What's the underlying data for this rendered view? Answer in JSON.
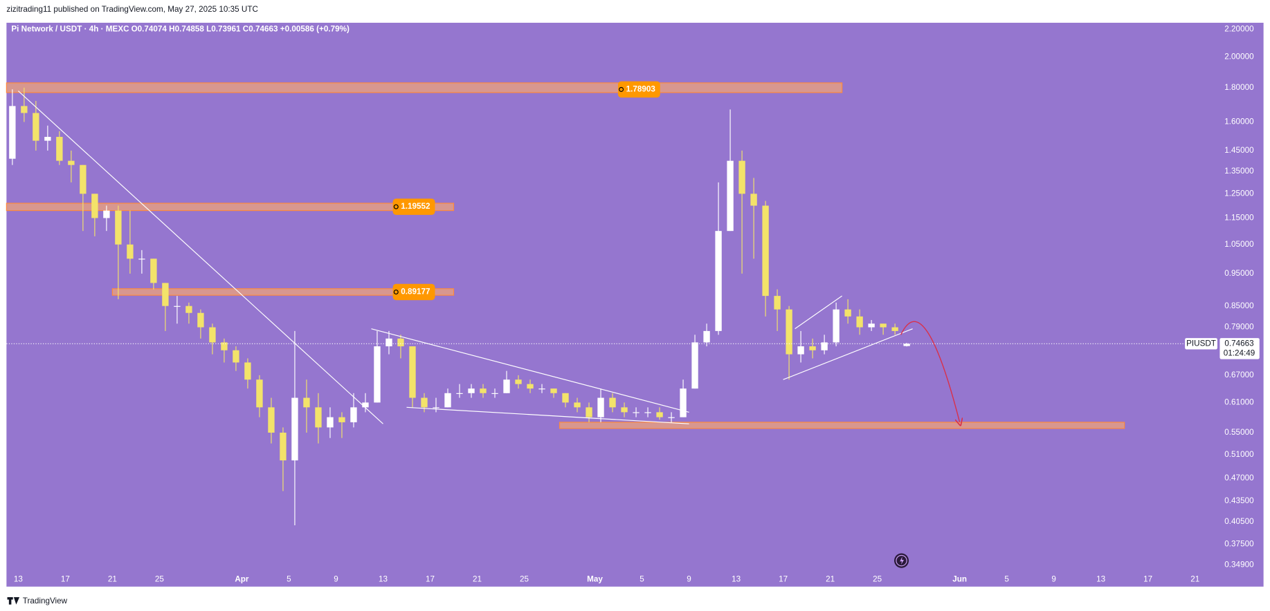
{
  "header": {
    "publisher": "zizitrading11 published on TradingView.com, May 27, 2025 10:35 UTC"
  },
  "chart_data": {
    "type": "candlestick",
    "symbol": "Pi Network / USDT · 4h · MEXC",
    "ohlc_text": "O0.74074 H0.74858 L0.73961 C0.74663 +0.00586 (+0.79%)",
    "ticker": "PIUSDT",
    "countdown": "01:24:49",
    "x": [
      "2025-03-12",
      "2025-03-13",
      "2025-03-14",
      "2025-03-15",
      "2025-03-16",
      "2025-03-17",
      "2025-03-18",
      "2025-03-19",
      "2025-03-20",
      "2025-03-21",
      "2025-03-22",
      "2025-03-23",
      "2025-03-24",
      "2025-03-25",
      "2025-03-26",
      "2025-03-27",
      "2025-03-28",
      "2025-03-29",
      "2025-03-30",
      "2025-03-31",
      "2025-04-01",
      "2025-04-02",
      "2025-04-03",
      "2025-04-04",
      "2025-04-05",
      "2025-04-06",
      "2025-04-07",
      "2025-04-08",
      "2025-04-09",
      "2025-04-10",
      "2025-04-11",
      "2025-04-12",
      "2025-04-13",
      "2025-04-14",
      "2025-04-15",
      "2025-04-16",
      "2025-04-17",
      "2025-04-18",
      "2025-04-19",
      "2025-04-20",
      "2025-04-21",
      "2025-04-22",
      "2025-04-23",
      "2025-04-24",
      "2025-04-25",
      "2025-04-26",
      "2025-04-27",
      "2025-04-28",
      "2025-04-29",
      "2025-04-30",
      "2025-05-01",
      "2025-05-02",
      "2025-05-03",
      "2025-05-04",
      "2025-05-05",
      "2025-05-06",
      "2025-05-07",
      "2025-05-08",
      "2025-05-09",
      "2025-05-10",
      "2025-05-11",
      "2025-05-12",
      "2025-05-13",
      "2025-05-14",
      "2025-05-15",
      "2025-05-16",
      "2025-05-17",
      "2025-05-18",
      "2025-05-19",
      "2025-05-20",
      "2025-05-21",
      "2025-05-22",
      "2025-05-23",
      "2025-05-24",
      "2025-05-25",
      "2025-05-26",
      "2025-05-27"
    ],
    "open": [
      1.41,
      1.69,
      1.65,
      1.5,
      1.52,
      1.4,
      1.38,
      1.25,
      1.15,
      1.18,
      1.05,
      1.0,
      1.0,
      0.92,
      0.85,
      0.85,
      0.83,
      0.79,
      0.75,
      0.73,
      0.7,
      0.66,
      0.6,
      0.55,
      0.5,
      0.62,
      0.6,
      0.56,
      0.58,
      0.57,
      0.6,
      0.61,
      0.74,
      0.76,
      0.74,
      0.62,
      0.6,
      0.6,
      0.63,
      0.63,
      0.64,
      0.63,
      0.63,
      0.66,
      0.65,
      0.64,
      0.64,
      0.63,
      0.61,
      0.6,
      0.58,
      0.62,
      0.6,
      0.59,
      0.59,
      0.59,
      0.58,
      0.58,
      0.64,
      0.75,
      0.78,
      1.1,
      1.4,
      1.25,
      1.2,
      0.88,
      0.84,
      0.72,
      0.74,
      0.73,
      0.75,
      0.84,
      0.82,
      0.79,
      0.8,
      0.79,
      0.74074
    ],
    "high": [
      1.79,
      1.8,
      1.72,
      1.58,
      1.55,
      1.45,
      1.38,
      1.25,
      1.2,
      1.2,
      1.18,
      1.03,
      1.0,
      0.92,
      0.88,
      0.86,
      0.84,
      0.8,
      0.76,
      0.74,
      0.71,
      0.67,
      0.62,
      0.56,
      0.78,
      0.66,
      0.63,
      0.6,
      0.59,
      0.63,
      0.63,
      0.78,
      0.78,
      0.77,
      0.74,
      0.63,
      0.62,
      0.64,
      0.65,
      0.65,
      0.65,
      0.64,
      0.68,
      0.67,
      0.66,
      0.65,
      0.64,
      0.63,
      0.62,
      0.61,
      0.64,
      0.63,
      0.61,
      0.6,
      0.6,
      0.6,
      0.59,
      0.66,
      0.77,
      0.8,
      1.3,
      1.67,
      1.45,
      1.32,
      1.22,
      0.9,
      0.85,
      0.78,
      0.76,
      0.77,
      0.86,
      0.87,
      0.84,
      0.81,
      0.8,
      0.8,
      0.74858
    ],
    "low": [
      1.38,
      1.6,
      1.45,
      1.45,
      1.38,
      1.3,
      1.1,
      1.08,
      1.1,
      0.87,
      0.95,
      0.95,
      0.9,
      0.78,
      0.8,
      0.8,
      0.76,
      0.72,
      0.7,
      0.68,
      0.64,
      0.58,
      0.53,
      0.45,
      0.4,
      0.55,
      0.53,
      0.54,
      0.54,
      0.56,
      0.59,
      0.61,
      0.72,
      0.71,
      0.6,
      0.59,
      0.59,
      0.6,
      0.62,
      0.62,
      0.62,
      0.62,
      0.63,
      0.64,
      0.63,
      0.63,
      0.62,
      0.6,
      0.59,
      0.57,
      0.57,
      0.59,
      0.58,
      0.58,
      0.58,
      0.575,
      0.57,
      0.58,
      0.64,
      0.74,
      0.77,
      1.1,
      0.95,
      1.0,
      0.82,
      0.78,
      0.66,
      0.7,
      0.71,
      0.72,
      0.74,
      0.8,
      0.77,
      0.78,
      0.77,
      0.77,
      0.73961
    ],
    "close": [
      1.69,
      1.65,
      1.5,
      1.52,
      1.4,
      1.38,
      1.25,
      1.15,
      1.18,
      1.05,
      1.0,
      1.0,
      0.92,
      0.85,
      0.85,
      0.83,
      0.79,
      0.75,
      0.73,
      0.7,
      0.66,
      0.6,
      0.55,
      0.5,
      0.62,
      0.6,
      0.56,
      0.58,
      0.57,
      0.6,
      0.61,
      0.74,
      0.76,
      0.74,
      0.62,
      0.6,
      0.6,
      0.63,
      0.63,
      0.64,
      0.63,
      0.63,
      0.66,
      0.65,
      0.64,
      0.64,
      0.63,
      0.61,
      0.6,
      0.58,
      0.62,
      0.6,
      0.59,
      0.59,
      0.59,
      0.58,
      0.58,
      0.64,
      0.75,
      0.78,
      1.1,
      1.4,
      1.25,
      1.2,
      0.88,
      0.84,
      0.72,
      0.74,
      0.73,
      0.75,
      0.84,
      0.82,
      0.79,
      0.8,
      0.79,
      0.78,
      0.74663
    ],
    "colors": {
      "up": "#ffffff",
      "down": "#f3e36a",
      "background": "#9576cf",
      "zone": "#e8a07e",
      "zone_border": "#ff8a3d",
      "line": "#ffffff",
      "arrow": "#d9304a",
      "label": "#ff9800"
    },
    "log_scale": true,
    "xlim": [
      "2025-03-12",
      "2025-06-22"
    ],
    "ylim": [
      0.324,
      2.25
    ],
    "yticks": [
      {
        "value": 2.2,
        "label": "2.20000"
      },
      {
        "value": 2.0,
        "label": "2.00000"
      },
      {
        "value": 1.8,
        "label": "1.80000"
      },
      {
        "value": 1.6,
        "label": "1.60000"
      },
      {
        "value": 1.45,
        "label": "1.45000"
      },
      {
        "value": 1.35,
        "label": "1.35000"
      },
      {
        "value": 1.25,
        "label": "1.25000"
      },
      {
        "value": 1.15,
        "label": "1.15000"
      },
      {
        "value": 1.05,
        "label": "1.05000"
      },
      {
        "value": 0.95,
        "label": "0.95000"
      },
      {
        "value": 0.85,
        "label": "0.85000"
      },
      {
        "value": 0.79,
        "label": "0.79000"
      },
      {
        "value": 0.67,
        "label": "0.67000"
      },
      {
        "value": 0.61,
        "label": "0.61000"
      },
      {
        "value": 0.55,
        "label": "0.55000"
      },
      {
        "value": 0.51,
        "label": "0.51000"
      },
      {
        "value": 0.47,
        "label": "0.47000"
      },
      {
        "value": 0.435,
        "label": "0.43500"
      },
      {
        "value": 0.405,
        "label": "0.40500"
      },
      {
        "value": 0.375,
        "label": "0.37500"
      },
      {
        "value": 0.349,
        "label": "0.34900"
      }
    ],
    "xticks": [
      {
        "value": "2025-03-13",
        "label": "13"
      },
      {
        "value": "2025-03-17",
        "label": "17"
      },
      {
        "value": "2025-03-21",
        "label": "21"
      },
      {
        "value": "2025-03-25",
        "label": "25"
      },
      {
        "value": "2025-04-01",
        "label": "Apr"
      },
      {
        "value": "2025-04-05",
        "label": "5"
      },
      {
        "value": "2025-04-09",
        "label": "9"
      },
      {
        "value": "2025-04-13",
        "label": "13"
      },
      {
        "value": "2025-04-17",
        "label": "17"
      },
      {
        "value": "2025-04-21",
        "label": "21"
      },
      {
        "value": "2025-04-25",
        "label": "25"
      },
      {
        "value": "2025-05-01",
        "label": "May"
      },
      {
        "value": "2025-05-05",
        "label": "5"
      },
      {
        "value": "2025-05-09",
        "label": "9"
      },
      {
        "value": "2025-05-13",
        "label": "13"
      },
      {
        "value": "2025-05-17",
        "label": "17"
      },
      {
        "value": "2025-05-21",
        "label": "21"
      },
      {
        "value": "2025-05-25",
        "label": "25"
      },
      {
        "value": "2025-06-01",
        "label": "Jun"
      },
      {
        "value": "2025-06-05",
        "label": "5"
      },
      {
        "value": "2025-06-09",
        "label": "9"
      },
      {
        "value": "2025-06-13",
        "label": "13"
      },
      {
        "value": "2025-06-17",
        "label": "17"
      },
      {
        "value": "2025-06-21",
        "label": "21"
      }
    ],
    "zones": [
      {
        "price": 1.78903,
        "low": 1.77,
        "high": 1.83,
        "start": "2025-03-12",
        "end": "2025-05-22"
      },
      {
        "price": 1.19552,
        "low": 1.18,
        "high": 1.21,
        "start": "2025-03-12",
        "end": "2025-04-19"
      },
      {
        "price": 0.89177,
        "low": 0.882,
        "high": 0.902,
        "start": "2025-03-21",
        "end": "2025-04-19"
      },
      {
        "low": 0.558,
        "high": 0.57,
        "start": "2025-04-28",
        "end": "2025-06-15"
      }
    ],
    "trendlines": [
      {
        "x": [
          "2025-03-13",
          "2025-04-13"
        ],
        "y": [
          1.78,
          0.567
        ]
      },
      {
        "x": [
          "2025-04-12",
          "2025-05-09"
        ],
        "y": [
          0.786,
          0.59
        ]
      },
      {
        "x": [
          "2025-04-15",
          "2025-05-09"
        ],
        "y": [
          0.6,
          0.567
        ]
      },
      {
        "x": [
          "2025-05-18",
          "2025-05-22"
        ],
        "y": [
          0.786,
          0.88
        ]
      },
      {
        "x": [
          "2025-05-17",
          "2025-05-28"
        ],
        "y": [
          0.66,
          0.786
        ]
      }
    ],
    "arrow": {
      "x": [
        "2025-05-27",
        "2025-05-29",
        "2025-06-01"
      ],
      "y": [
        0.77,
        0.84,
        0.57
      ]
    },
    "footer": "TradingView"
  }
}
